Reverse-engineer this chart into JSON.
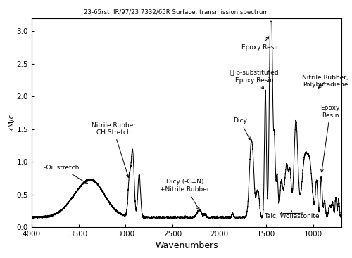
{
  "title": "23-65rst  IR/97/23 7332/65R Surface: transmission spectrum",
  "xlabel": "Wavenumbers",
  "ylabel": "kM/c",
  "xlim": [
    4000,
    700
  ],
  "ylim": [
    0.0,
    3.2
  ],
  "yticks": [
    0.0,
    0.5,
    1.0,
    1.5,
    2.0,
    2.5,
    3.0
  ],
  "xticks": [
    4000,
    3500,
    3000,
    2500,
    2000,
    1500,
    1000
  ],
  "background_color": "#ffffff",
  "line_color": "#000000"
}
